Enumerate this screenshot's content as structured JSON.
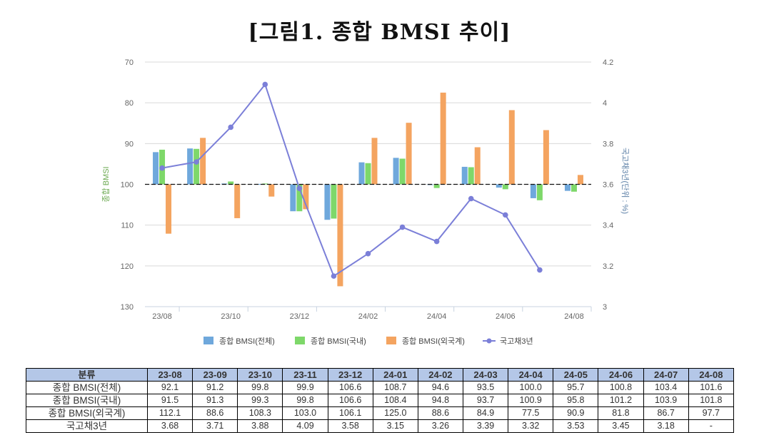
{
  "title": "[그림1. 종합 BMSI 추이]",
  "chart_data": {
    "type": "bar",
    "categories": [
      "23-08",
      "23-09",
      "23-10",
      "23-11",
      "23-12",
      "24-01",
      "24-02",
      "24-03",
      "24-04",
      "24-05",
      "24-06",
      "24-07",
      "24-08"
    ],
    "x_tick_labels": [
      "23/08",
      "23/10",
      "23/12",
      "24/02",
      "24/04",
      "24/06",
      "24/08"
    ],
    "left_axis": {
      "label": "종합 BMSI",
      "ylim": [
        70,
        130
      ],
      "reversed": true,
      "ticks": [
        70,
        80,
        90,
        100,
        110,
        120,
        130
      ],
      "baseline": 100
    },
    "right_axis": {
      "label": "국고채3년(단위 : %)",
      "ylim": [
        3,
        4.2
      ],
      "ticks": [
        "4.2",
        "4",
        "3.8",
        "3.6",
        "3.4",
        "3.2",
        "3"
      ]
    },
    "series": [
      {
        "name": "종합 BMSI(전체)",
        "type": "bar",
        "axis": "left",
        "color": "#6fa8dc",
        "values": [
          92.1,
          91.2,
          99.8,
          99.9,
          106.6,
          108.7,
          94.6,
          93.5,
          100.0,
          95.7,
          100.8,
          103.4,
          101.6
        ]
      },
      {
        "name": "종합 BMSI(국내)",
        "type": "bar",
        "axis": "left",
        "color": "#7ed86a",
        "values": [
          91.5,
          91.3,
          99.3,
          99.8,
          106.6,
          108.4,
          94.8,
          93.7,
          100.9,
          95.8,
          101.2,
          103.9,
          101.8
        ]
      },
      {
        "name": "종합 BMSI(외국계)",
        "type": "bar",
        "axis": "left",
        "color": "#f4a460",
        "values": [
          112.1,
          88.6,
          108.3,
          103.0,
          106.1,
          125.0,
          88.6,
          84.9,
          77.5,
          90.9,
          81.8,
          86.7,
          97.7
        ]
      },
      {
        "name": "국고채3년",
        "type": "line",
        "axis": "right",
        "color": "#7b7fd8",
        "values": [
          3.68,
          3.71,
          3.88,
          4.09,
          3.58,
          3.15,
          3.26,
          3.39,
          3.32,
          3.53,
          3.45,
          3.18,
          null
        ]
      }
    ],
    "grid": true,
    "legend_position": "bottom"
  },
  "table": {
    "header_label": "분류",
    "columns": [
      "23-08",
      "23-09",
      "23-10",
      "23-11",
      "23-12",
      "24-01",
      "24-02",
      "24-03",
      "24-04",
      "24-05",
      "24-06",
      "24-07",
      "24-08"
    ],
    "rows": [
      {
        "label": "종합 BMSI(전체)",
        "values": [
          "92.1",
          "91.2",
          "99.8",
          "99.9",
          "106.6",
          "108.7",
          "94.6",
          "93.5",
          "100.0",
          "95.7",
          "100.8",
          "103.4",
          "101.6"
        ]
      },
      {
        "label": "종합 BMSI(국내)",
        "values": [
          "91.5",
          "91.3",
          "99.3",
          "99.8",
          "106.6",
          "108.4",
          "94.8",
          "93.7",
          "100.9",
          "95.8",
          "101.2",
          "103.9",
          "101.8"
        ]
      },
      {
        "label": "종합 BMSI(외국계)",
        "values": [
          "112.1",
          "88.6",
          "108.3",
          "103.0",
          "106.1",
          "125.0",
          "88.6",
          "84.9",
          "77.5",
          "90.9",
          "81.8",
          "86.7",
          "97.7"
        ]
      },
      {
        "label": "국고채3년",
        "values": [
          "3.68",
          "3.71",
          "3.88",
          "4.09",
          "3.58",
          "3.15",
          "3.26",
          "3.39",
          "3.32",
          "3.53",
          "3.45",
          "3.18",
          "-"
        ]
      }
    ]
  }
}
